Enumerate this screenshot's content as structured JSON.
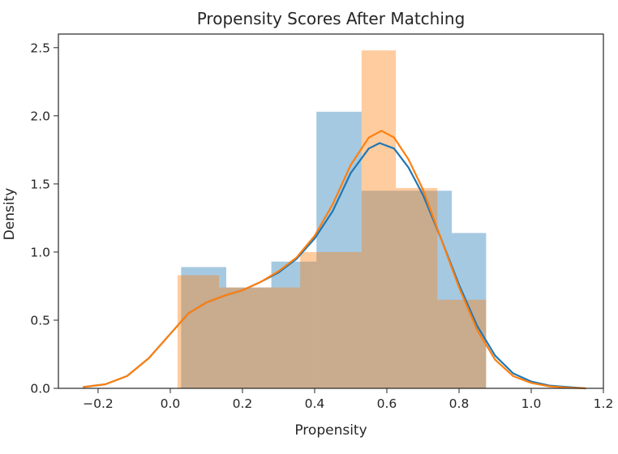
{
  "chart_data": {
    "type": "histogram",
    "title": "Propensity Scores After Matching",
    "xlabel": "Propensity",
    "ylabel": "Density",
    "xlim": [
      -0.31,
      1.2
    ],
    "ylim": [
      0,
      2.6
    ],
    "xticks": [
      -0.2,
      0.0,
      0.2,
      0.4,
      0.6,
      0.8,
      1.0,
      1.2
    ],
    "xtick_labels": [
      "−0.2",
      "0.0",
      "0.2",
      "0.4",
      "0.6",
      "0.8",
      "1.0",
      "1.2"
    ],
    "yticks": [
      0.0,
      0.5,
      1.0,
      1.5,
      2.0,
      2.5
    ],
    "ytick_labels": [
      "0.0",
      "0.5",
      "1.0",
      "1.5",
      "2.0",
      "2.5"
    ],
    "grid": false,
    "series": [
      {
        "color": "#1f77b4",
        "hist_opacity": 0.4,
        "bins": [
          {
            "x0": 0.03,
            "x1": 0.155,
            "density": 0.89
          },
          {
            "x0": 0.155,
            "x1": 0.28,
            "density": 0.74
          },
          {
            "x0": 0.28,
            "x1": 0.405,
            "density": 0.93
          },
          {
            "x0": 0.405,
            "x1": 0.53,
            "density": 2.03
          },
          {
            "x0": 0.53,
            "x1": 0.655,
            "density": 1.45
          },
          {
            "x0": 0.655,
            "x1": 0.78,
            "density": 1.45
          },
          {
            "x0": 0.78,
            "x1": 0.875,
            "density": 1.14
          },
          {
            "x0": 0.875,
            "x1": 0.875,
            "density": 0.0
          }
        ],
        "kde": {
          "x": [
            -0.24,
            -0.18,
            -0.12,
            -0.06,
            0.0,
            0.05,
            0.1,
            0.15,
            0.2,
            0.25,
            0.3,
            0.35,
            0.4,
            0.45,
            0.5,
            0.55,
            0.58,
            0.62,
            0.66,
            0.7,
            0.75,
            0.8,
            0.85,
            0.9,
            0.95,
            1.0,
            1.05,
            1.1,
            1.15
          ],
          "y": [
            0.01,
            0.03,
            0.09,
            0.22,
            0.4,
            0.55,
            0.63,
            0.68,
            0.72,
            0.78,
            0.85,
            0.95,
            1.1,
            1.3,
            1.58,
            1.76,
            1.8,
            1.76,
            1.62,
            1.42,
            1.1,
            0.76,
            0.46,
            0.24,
            0.11,
            0.05,
            0.02,
            0.01,
            0.0
          ]
        }
      },
      {
        "color": "#ff7f0e",
        "hist_opacity": 0.4,
        "bins": [
          {
            "x0": 0.02,
            "x1": 0.135,
            "density": 0.83
          },
          {
            "x0": 0.135,
            "x1": 0.25,
            "density": 0.74
          },
          {
            "x0": 0.25,
            "x1": 0.36,
            "density": 0.74
          },
          {
            "x0": 0.36,
            "x1": 0.45,
            "density": 1.0
          },
          {
            "x0": 0.45,
            "x1": 0.53,
            "density": 1.0
          },
          {
            "x0": 0.53,
            "x1": 0.625,
            "density": 2.48
          },
          {
            "x0": 0.625,
            "x1": 0.74,
            "density": 1.47
          },
          {
            "x0": 0.74,
            "x1": 0.875,
            "density": 0.65
          }
        ],
        "kde": {
          "x": [
            -0.24,
            -0.18,
            -0.12,
            -0.06,
            0.0,
            0.05,
            0.1,
            0.15,
            0.2,
            0.25,
            0.3,
            0.35,
            0.4,
            0.45,
            0.5,
            0.55,
            0.585,
            0.62,
            0.66,
            0.7,
            0.75,
            0.8,
            0.85,
            0.9,
            0.95,
            1.0,
            1.05,
            1.1,
            1.15
          ],
          "y": [
            0.01,
            0.03,
            0.09,
            0.22,
            0.4,
            0.55,
            0.63,
            0.68,
            0.72,
            0.78,
            0.86,
            0.96,
            1.12,
            1.35,
            1.64,
            1.84,
            1.89,
            1.84,
            1.68,
            1.46,
            1.1,
            0.74,
            0.43,
            0.21,
            0.09,
            0.04,
            0.015,
            0.005,
            0.0
          ]
        }
      }
    ]
  }
}
